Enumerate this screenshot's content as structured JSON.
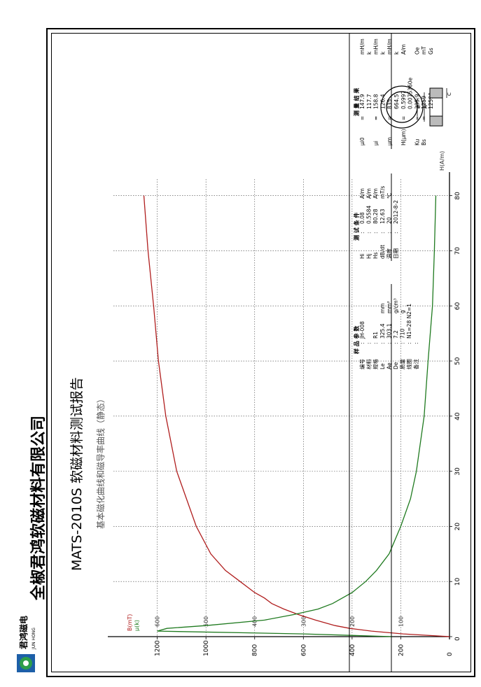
{
  "company": {
    "name": "全椒君鸿软磁材料有限公司",
    "logo_text": "君鸿磁电",
    "logo_subtext": "JUN HONG"
  },
  "report": {
    "title": "MATS-2010S  软磁材料测试报告",
    "subtitle": "基本磁化曲线和磁导率曲线（静态）"
  },
  "results": {
    "heading": "测 量 结 果",
    "rows": [
      {
        "label": "μi0",
        "sep": "=",
        "value": "147.9",
        "unit": "mH/m"
      },
      {
        "label": "",
        "sep": "",
        "value": "117.7",
        "unit": "k"
      },
      {
        "label": "μi",
        "sep": "=",
        "value": "158.8",
        "unit": "mH/m"
      },
      {
        "label": "",
        "sep": "",
        "value": "126.4",
        "unit": "k"
      },
      {
        "label": "μm",
        "sep": "=",
        "value": "835",
        "unit": "mH/m"
      },
      {
        "label": "",
        "sep": "",
        "value": "664.5",
        "unit": "k"
      },
      {
        "label": "H(μm)",
        "sep": "=",
        "value": "0.5997",
        "unit": "A/m"
      },
      {
        "label": "",
        "sep": "",
        "value": "0.0075360e",
        "unit": ""
      },
      {
        "label": "Ku",
        "sep": "=",
        "value": "385.9",
        "unit": "Oe"
      },
      {
        "label": "Bs",
        "sep": "=",
        "value": "1259",
        "unit": "mT"
      },
      {
        "label": "",
        "sep": "",
        "value": "12590",
        "unit": "Gs"
      }
    ]
  },
  "conditions": {
    "heading": "测 试 条 件",
    "rows": [
      {
        "label": "Hi",
        "sep": ":",
        "value": "0.08",
        "unit": "A/m"
      },
      {
        "label": "Hj",
        "sep": ":",
        "value": "0.5584",
        "unit": "A/m"
      },
      {
        "label": "Hs",
        "sep": ":",
        "value": "80.28",
        "unit": "A/m"
      },
      {
        "label": "dB/dt",
        "sep": ":",
        "value": "12.63",
        "unit": "mT/s"
      },
      {
        "label": "温度",
        "sep": ":",
        "value": "20",
        "unit": "℃"
      },
      {
        "label": "日期",
        "sep": ":",
        "value": "2012-8-2",
        "unit": ""
      }
    ]
  },
  "sample": {
    "heading": "样 品 参 数",
    "rows": [
      {
        "label": "编号",
        "sep": ":",
        "value": "JH-008",
        "unit": ""
      },
      {
        "label": "材料",
        "sep": ":",
        "value": "",
        "unit": ""
      },
      {
        "label": "规格",
        "sep": ":",
        "value": "R1",
        "unit": ""
      },
      {
        "label": "Le",
        "sep": ":",
        "value": "325.4",
        "unit": "mm"
      },
      {
        "label": "Ae",
        "sep": ":",
        "value": "303.1",
        "unit": "mm²"
      },
      {
        "label": "De",
        "sep": ":",
        "value": "7.2",
        "unit": "g/cm³"
      },
      {
        "label": "质量",
        "sep": ":",
        "value": "710",
        "unit": "g"
      },
      {
        "label": "线圈",
        "sep": ":",
        "value": "N1=28 N2=1",
        "unit": ""
      },
      {
        "label": "备注",
        "sep": ":",
        "value": "",
        "unit": ""
      }
    ]
  },
  "diagram": {
    "heading": "【尺寸示意图】",
    "labels": {
      "a": "A",
      "b": "B",
      "c": "C"
    },
    "dims_line1": "A = 120    B = 90",
    "dims_line2": "C = 25     (单位: mm)"
  },
  "chart_data": {
    "type": "line",
    "xlabel": "H(A/m)",
    "x_ticks": [
      "0",
      "10",
      "20",
      "30",
      "40",
      "50",
      "60",
      "70",
      "80"
    ],
    "xlim": [
      0,
      83
    ],
    "left_axis": {
      "label": "B(mT)",
      "ticks": [
        "0",
        "200",
        "400",
        "600",
        "800",
        "1000",
        "1200"
      ],
      "ylim": [
        0,
        1380
      ]
    },
    "right_axis": {
      "label": "μ(k)",
      "ticks": [
        "100",
        "200",
        "300",
        "400",
        "500",
        "600"
      ],
      "ylim": [
        0,
        690
      ]
    },
    "grid": true,
    "colors": {
      "B": "#b01e1e",
      "mu": "#1f7a1f"
    },
    "series": [
      {
        "name": "B(mT)",
        "axis": "left",
        "x": [
          0,
          0.5,
          1,
          1.5,
          2,
          3,
          4,
          5,
          6,
          7,
          8,
          10,
          12,
          15,
          20,
          30,
          40,
          50,
          60,
          70,
          80
        ],
        "y": [
          0,
          190,
          320,
          410,
          470,
          550,
          620,
          680,
          730,
          760,
          800,
          860,
          920,
          980,
          1040,
          1120,
          1165,
          1195,
          1215,
          1238,
          1255
        ]
      },
      {
        "name": "μ(k)",
        "axis": "right",
        "x": [
          0,
          0.5,
          1,
          1.5,
          2,
          3,
          4,
          5,
          6,
          8,
          10,
          12,
          15,
          20,
          25,
          30,
          40,
          50,
          60,
          70,
          80
        ],
        "y": [
          118,
          300,
          600,
          580,
          500,
          380,
          320,
          270,
          240,
          200,
          172,
          150,
          124,
          100,
          80,
          68,
          52,
          44,
          35,
          31,
          28
        ]
      }
    ]
  }
}
